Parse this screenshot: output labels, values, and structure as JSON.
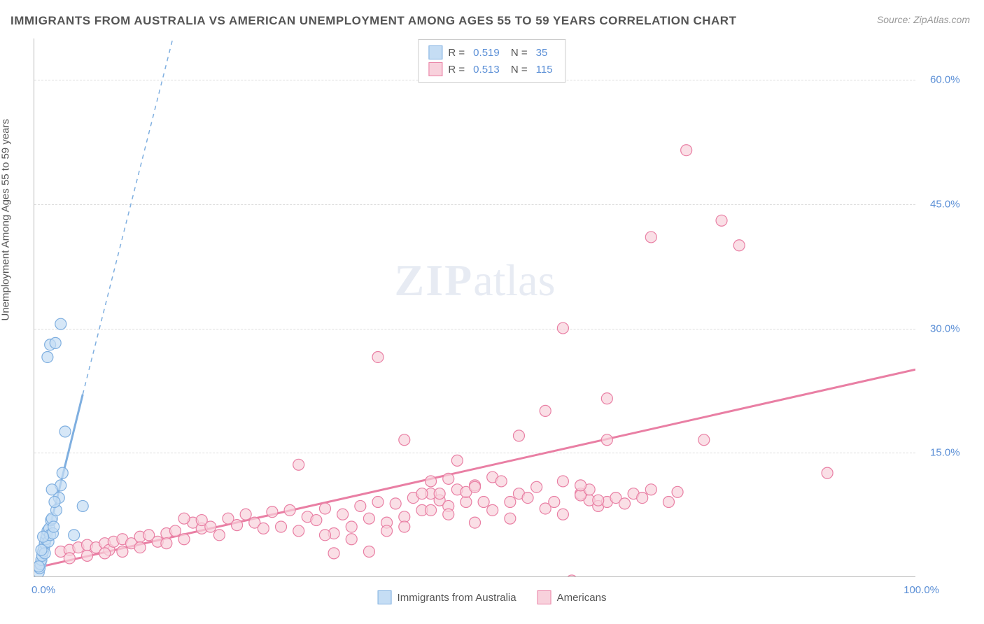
{
  "title": "IMMIGRANTS FROM AUSTRALIA VS AMERICAN UNEMPLOYMENT AMONG AGES 55 TO 59 YEARS CORRELATION CHART",
  "source": "Source: ZipAtlas.com",
  "ylabel": "Unemployment Among Ages 55 to 59 years",
  "watermark_a": "ZIP",
  "watermark_b": "atlas",
  "chart": {
    "type": "scatter",
    "xlim": [
      0,
      100
    ],
    "ylim": [
      0,
      65
    ],
    "xtick_min_label": "0.0%",
    "xtick_max_label": "100.0%",
    "yticks": [
      15,
      30,
      45,
      60
    ],
    "ytick_labels": [
      "15.0%",
      "30.0%",
      "45.0%",
      "60.0%"
    ],
    "grid_color": "#dddddd",
    "axis_color": "#bbbbbb",
    "background_color": "#ffffff",
    "series": [
      {
        "name": "Immigrants from Australia",
        "label": "Immigrants from Australia",
        "color_fill": "#c5ddf4",
        "color_stroke": "#7fafe0",
        "marker_radius": 8,
        "R": "0.519",
        "N": "35",
        "trend_line": {
          "x1": 0.5,
          "y1": 0.5,
          "x2": 5.5,
          "y2": 22,
          "solid_until_x": 5.5,
          "dash_to_x": 20,
          "dash_to_y": 83
        },
        "points": [
          [
            0.5,
            0.5
          ],
          [
            0.6,
            1.0
          ],
          [
            0.7,
            1.5
          ],
          [
            0.8,
            2.0
          ],
          [
            0.9,
            2.5
          ],
          [
            1.0,
            3.0
          ],
          [
            1.1,
            3.5
          ],
          [
            1.2,
            4.0
          ],
          [
            1.3,
            4.5
          ],
          [
            1.4,
            5.0
          ],
          [
            1.5,
            5.5
          ],
          [
            1.6,
            4.2
          ],
          [
            1.7,
            5.8
          ],
          [
            1.8,
            5.0
          ],
          [
            1.9,
            6.8
          ],
          [
            2.0,
            7.0
          ],
          [
            2.1,
            5.2
          ],
          [
            2.2,
            6.0
          ],
          [
            2.5,
            8.0
          ],
          [
            2.8,
            9.5
          ],
          [
            3.0,
            11.0
          ],
          [
            3.2,
            12.5
          ],
          [
            3.5,
            17.5
          ],
          [
            1.5,
            26.5
          ],
          [
            1.8,
            28.0
          ],
          [
            2.4,
            28.2
          ],
          [
            3.0,
            30.5
          ],
          [
            0.5,
            1.2
          ],
          [
            4.5,
            5.0
          ],
          [
            5.5,
            8.5
          ],
          [
            1.2,
            2.8
          ],
          [
            0.8,
            3.2
          ],
          [
            1.0,
            4.8
          ],
          [
            2.0,
            10.5
          ],
          [
            2.3,
            9.0
          ]
        ]
      },
      {
        "name": "Americans",
        "label": "Americans",
        "color_fill": "#f8d1dc",
        "color_stroke": "#e97fa4",
        "marker_radius": 8,
        "R": "0.513",
        "N": "115",
        "trend_line": {
          "x1": 0,
          "y1": 1.0,
          "x2": 100,
          "y2": 25
        },
        "points": [
          [
            3,
            3.0
          ],
          [
            4,
            3.2
          ],
          [
            5,
            3.5
          ],
          [
            6,
            3.8
          ],
          [
            7,
            3.5
          ],
          [
            8,
            4.0
          ],
          [
            8.5,
            3.2
          ],
          [
            9,
            4.2
          ],
          [
            10,
            4.5
          ],
          [
            11,
            4.0
          ],
          [
            12,
            4.8
          ],
          [
            13,
            5.0
          ],
          [
            14,
            4.2
          ],
          [
            15,
            5.2
          ],
          [
            16,
            5.5
          ],
          [
            17,
            4.5
          ],
          [
            18,
            6.5
          ],
          [
            19,
            5.8
          ],
          [
            20,
            6.0
          ],
          [
            21,
            5.0
          ],
          [
            22,
            7.0
          ],
          [
            23,
            6.2
          ],
          [
            24,
            7.5
          ],
          [
            25,
            6.5
          ],
          [
            26,
            5.8
          ],
          [
            27,
            7.8
          ],
          [
            28,
            6.0
          ],
          [
            29,
            8.0
          ],
          [
            30,
            5.5
          ],
          [
            31,
            7.2
          ],
          [
            32,
            6.8
          ],
          [
            33,
            8.2
          ],
          [
            34,
            5.2
          ],
          [
            35,
            7.5
          ],
          [
            36,
            6.0
          ],
          [
            37,
            8.5
          ],
          [
            38,
            7.0
          ],
          [
            39,
            9.0
          ],
          [
            40,
            6.5
          ],
          [
            41,
            8.8
          ],
          [
            42,
            7.2
          ],
          [
            43,
            9.5
          ],
          [
            44,
            8.0
          ],
          [
            45,
            10.0
          ],
          [
            46,
            9.2
          ],
          [
            47,
            8.5
          ],
          [
            48,
            10.5
          ],
          [
            49,
            9.0
          ],
          [
            50,
            11.0
          ],
          [
            30,
            13.5
          ],
          [
            34,
            2.8
          ],
          [
            38,
            3.0
          ],
          [
            17,
            7.0
          ],
          [
            19,
            6.8
          ],
          [
            39,
            26.5
          ],
          [
            42,
            16.5
          ],
          [
            44,
            10.0
          ],
          [
            45,
            11.5
          ],
          [
            46,
            10.0
          ],
          [
            47,
            11.8
          ],
          [
            48,
            14.0
          ],
          [
            49,
            10.2
          ],
          [
            50,
            10.8
          ],
          [
            51,
            9.0
          ],
          [
            52,
            12.0
          ],
          [
            53,
            11.5
          ],
          [
            54,
            9.0
          ],
          [
            55,
            10.0
          ],
          [
            56,
            9.5
          ],
          [
            57,
            10.8
          ],
          [
            58,
            20.0
          ],
          [
            59,
            9.0
          ],
          [
            60,
            11.5
          ],
          [
            61,
            -0.5
          ],
          [
            62,
            10.0
          ],
          [
            63,
            9.2
          ],
          [
            64,
            8.5
          ],
          [
            65,
            9.0
          ],
          [
            60,
            30.0
          ],
          [
            62,
            9.8
          ],
          [
            63,
            10.5
          ],
          [
            64,
            9.2
          ],
          [
            65,
            21.5
          ],
          [
            65,
            16.5
          ],
          [
            66,
            9.5
          ],
          [
            67,
            8.8
          ],
          [
            68,
            10.0
          ],
          [
            69,
            9.5
          ],
          [
            70,
            41.0
          ],
          [
            70,
            10.5
          ],
          [
            72,
            9.0
          ],
          [
            73,
            10.2
          ],
          [
            76,
            16.5
          ],
          [
            62,
            11.0
          ],
          [
            55,
            17.0
          ],
          [
            78,
            43.0
          ],
          [
            80,
            40.0
          ],
          [
            74,
            51.5
          ],
          [
            90,
            12.5
          ],
          [
            45,
            8.0
          ],
          [
            47,
            7.5
          ],
          [
            50,
            6.5
          ],
          [
            52,
            8.0
          ],
          [
            54,
            7.0
          ],
          [
            58,
            8.2
          ],
          [
            60,
            7.5
          ],
          [
            33,
            5.0
          ],
          [
            36,
            4.5
          ],
          [
            40,
            5.5
          ],
          [
            42,
            6.0
          ],
          [
            15,
            4.0
          ],
          [
            12,
            3.5
          ],
          [
            10,
            3.0
          ],
          [
            8,
            2.8
          ],
          [
            6,
            2.5
          ],
          [
            4,
            2.2
          ]
        ]
      }
    ]
  }
}
